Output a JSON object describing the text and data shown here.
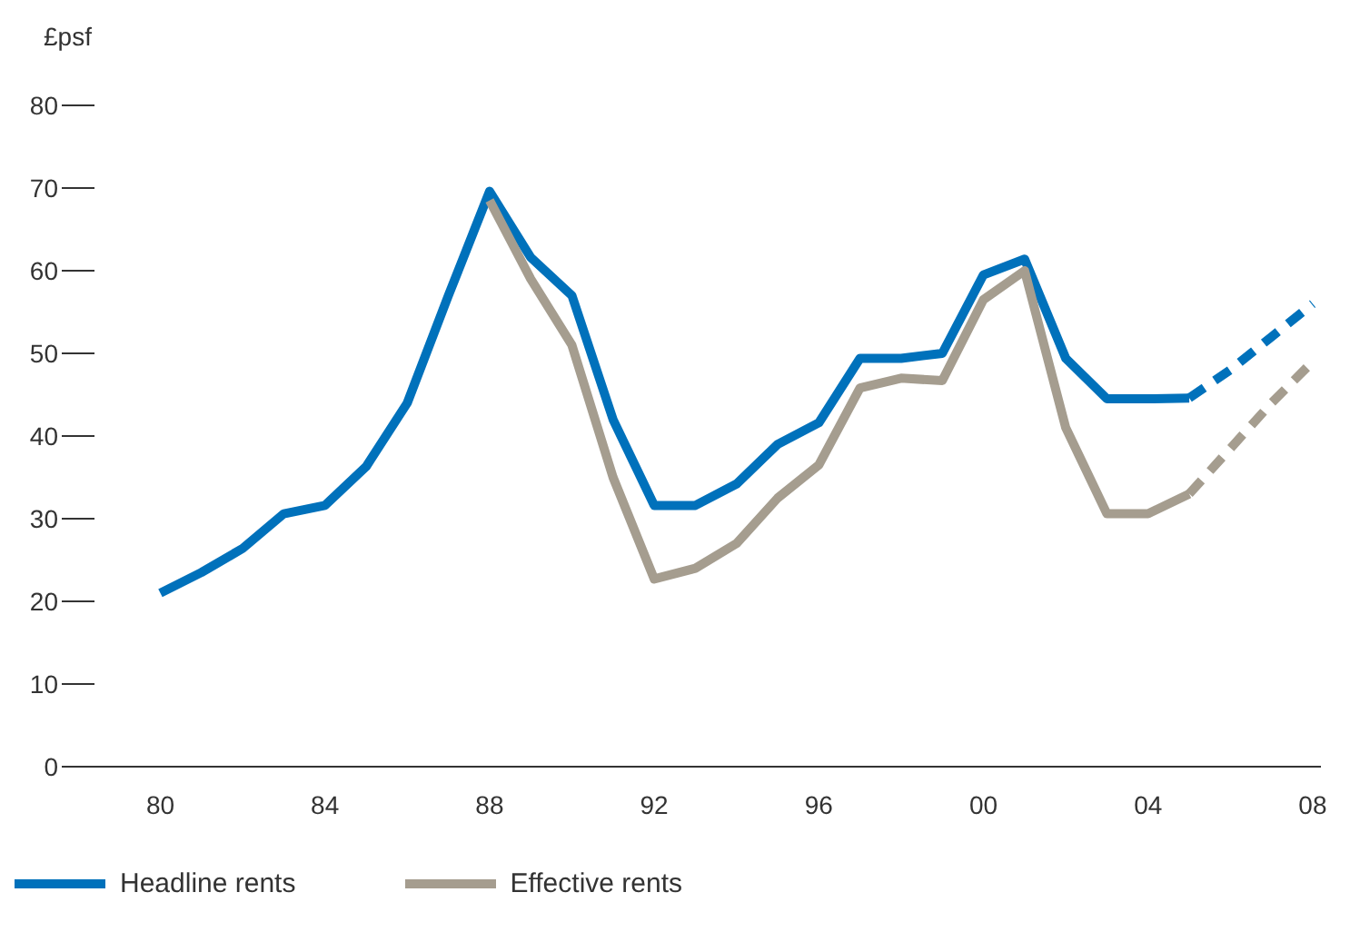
{
  "chart_data": {
    "type": "line",
    "ylabel": "£psf",
    "x": [
      1980,
      1981,
      1982,
      1983,
      1984,
      1985,
      1986,
      1987,
      1988,
      1989,
      1990,
      1991,
      1992,
      1993,
      1994,
      1995,
      1996,
      1997,
      1998,
      1999,
      2000,
      2001,
      2002,
      2003,
      2004,
      2005
    ],
    "series": [
      {
        "name": "Headline rents",
        "color": "#0071bb",
        "values": [
          21,
          23.5,
          26.4,
          30.6,
          31.6,
          36.3,
          44,
          57,
          69.6,
          61.6,
          57,
          42,
          31.6,
          31.6,
          34.2,
          39,
          41.6,
          49.4,
          49.4,
          50,
          59.5,
          61.4,
          49.4,
          44.5,
          44.5,
          44.6
        ]
      },
      {
        "name": "Effective rents",
        "color": "#a59d8f",
        "values": [
          null,
          null,
          null,
          null,
          null,
          null,
          null,
          null,
          68.5,
          59,
          51,
          35,
          22.7,
          24,
          27,
          32.5,
          36.5,
          45.8,
          47,
          46.7,
          56.5,
          60,
          41,
          30.6,
          30.6,
          33
        ]
      },
      {
        "color": "#0071bb",
        "line_style": "dashed",
        "x": [
          2005,
          2006,
          2007,
          2008
        ],
        "values": [
          44.6,
          48,
          52,
          56
        ]
      },
      {
        "color": "#a59d8f",
        "line_style": "dashed",
        "x": [
          2005,
          2006,
          2007,
          2008
        ],
        "values": [
          33,
          38.5,
          44,
          49
        ]
      }
    ],
    "xlim": [
      1978.4,
      2008.2
    ],
    "xticks": [
      {
        "value": 1980,
        "label": "80"
      },
      {
        "value": 1984,
        "label": "84"
      },
      {
        "value": 1988,
        "label": "88"
      },
      {
        "value": 1992,
        "label": "92"
      },
      {
        "value": 1996,
        "label": "96"
      },
      {
        "value": 2000,
        "label": "00"
      },
      {
        "value": 2004,
        "label": "04"
      },
      {
        "value": 2008,
        "label": "08"
      }
    ],
    "ylim": [
      0,
      80
    ],
    "yticks": [
      0,
      10,
      20,
      30,
      40,
      50,
      60,
      70,
      80
    ],
    "grid": false,
    "legend": "bottom left",
    "marker": "none",
    "line_style": "solid"
  }
}
